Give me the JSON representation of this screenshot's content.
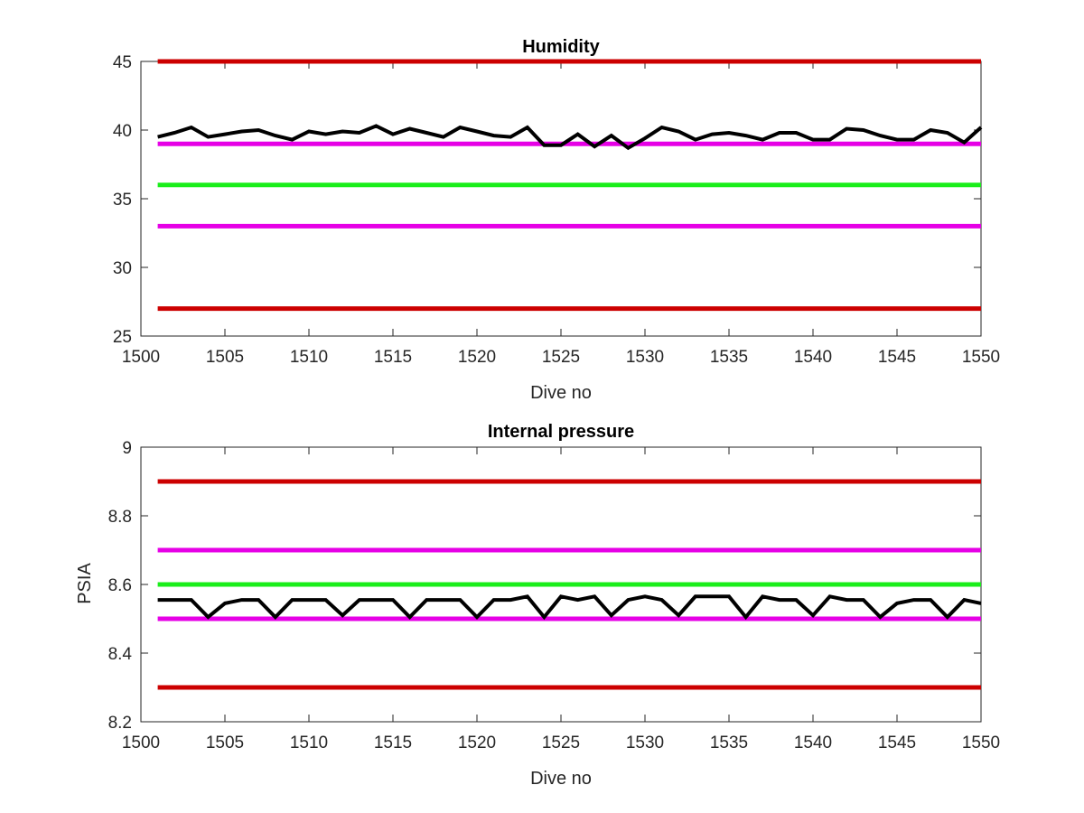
{
  "chart_data": [
    {
      "type": "line",
      "title": "Humidity",
      "xlabel": "Dive no",
      "ylabel": "",
      "xlim": [
        1500,
        1550
      ],
      "ylim": [
        25,
        45
      ],
      "xticks": [
        1500,
        1505,
        1510,
        1515,
        1520,
        1525,
        1530,
        1535,
        1540,
        1545,
        1550
      ],
      "yticks": [
        25,
        30,
        35,
        40,
        45
      ],
      "grid": false,
      "x": [
        1501,
        1502,
        1503,
        1504,
        1505,
        1506,
        1507,
        1508,
        1509,
        1510,
        1511,
        1512,
        1513,
        1514,
        1515,
        1516,
        1517,
        1518,
        1519,
        1520,
        1521,
        1522,
        1523,
        1524,
        1525,
        1526,
        1527,
        1528,
        1529,
        1530,
        1531,
        1532,
        1533,
        1534,
        1535,
        1536,
        1537,
        1538,
        1539,
        1540,
        1541,
        1542,
        1543,
        1544,
        1545,
        1546,
        1547,
        1548,
        1549,
        1550
      ],
      "series": [
        {
          "color": "#000000",
          "values": [
            39.5,
            39.8,
            40.2,
            39.5,
            39.7,
            39.9,
            40.0,
            39.6,
            39.3,
            39.9,
            39.7,
            39.9,
            39.8,
            40.3,
            39.7,
            40.1,
            39.8,
            39.5,
            40.2,
            39.9,
            39.6,
            39.5,
            40.2,
            38.9,
            38.9,
            39.7,
            38.8,
            39.6,
            38.7,
            39.4,
            40.2,
            39.9,
            39.3,
            39.7,
            39.8,
            39.6,
            39.3,
            39.8,
            39.8,
            39.3,
            39.3,
            40.1,
            40.0,
            39.6,
            39.3,
            39.3,
            40.0,
            39.8,
            39.1,
            40.2
          ]
        }
      ],
      "reference_lines": [
        {
          "value": 45,
          "color": "#cc0000"
        },
        {
          "value": 39,
          "color": "#e600e6"
        },
        {
          "value": 36,
          "color": "#1aee1a"
        },
        {
          "value": 33,
          "color": "#e600e6"
        },
        {
          "value": 27,
          "color": "#cc0000"
        }
      ],
      "reference_xrange": [
        1501,
        1550
      ]
    },
    {
      "type": "line",
      "title": "Internal pressure",
      "xlabel": "Dive no",
      "ylabel": "PSIA",
      "xlim": [
        1500,
        1550
      ],
      "ylim": [
        8.2,
        9
      ],
      "xticks": [
        1500,
        1505,
        1510,
        1515,
        1520,
        1525,
        1530,
        1535,
        1540,
        1545,
        1550
      ],
      "yticks": [
        8.2,
        8.4,
        8.6,
        8.8,
        9
      ],
      "grid": false,
      "x": [
        1501,
        1502,
        1503,
        1504,
        1505,
        1506,
        1507,
        1508,
        1509,
        1510,
        1511,
        1512,
        1513,
        1514,
        1515,
        1516,
        1517,
        1518,
        1519,
        1520,
        1521,
        1522,
        1523,
        1524,
        1525,
        1526,
        1527,
        1528,
        1529,
        1530,
        1531,
        1532,
        1533,
        1534,
        1535,
        1536,
        1537,
        1538,
        1539,
        1540,
        1541,
        1542,
        1543,
        1544,
        1545,
        1546,
        1547,
        1548,
        1549,
        1550
      ],
      "series": [
        {
          "color": "#000000",
          "values": [
            8.555,
            8.555,
            8.555,
            8.505,
            8.545,
            8.555,
            8.555,
            8.505,
            8.555,
            8.555,
            8.555,
            8.51,
            8.555,
            8.555,
            8.555,
            8.505,
            8.555,
            8.555,
            8.555,
            8.505,
            8.555,
            8.555,
            8.565,
            8.505,
            8.565,
            8.555,
            8.565,
            8.51,
            8.555,
            8.565,
            8.555,
            8.51,
            8.565,
            8.565,
            8.565,
            8.505,
            8.565,
            8.555,
            8.555,
            8.51,
            8.565,
            8.555,
            8.555,
            8.505,
            8.545,
            8.555,
            8.555,
            8.505,
            8.555,
            8.545
          ]
        }
      ],
      "reference_lines": [
        {
          "value": 8.9,
          "color": "#cc0000"
        },
        {
          "value": 8.7,
          "color": "#e600e6"
        },
        {
          "value": 8.6,
          "color": "#1aee1a"
        },
        {
          "value": 8.5,
          "color": "#e600e6"
        },
        {
          "value": 8.3,
          "color": "#cc0000"
        }
      ],
      "reference_xrange": [
        1501,
        1550
      ]
    }
  ]
}
